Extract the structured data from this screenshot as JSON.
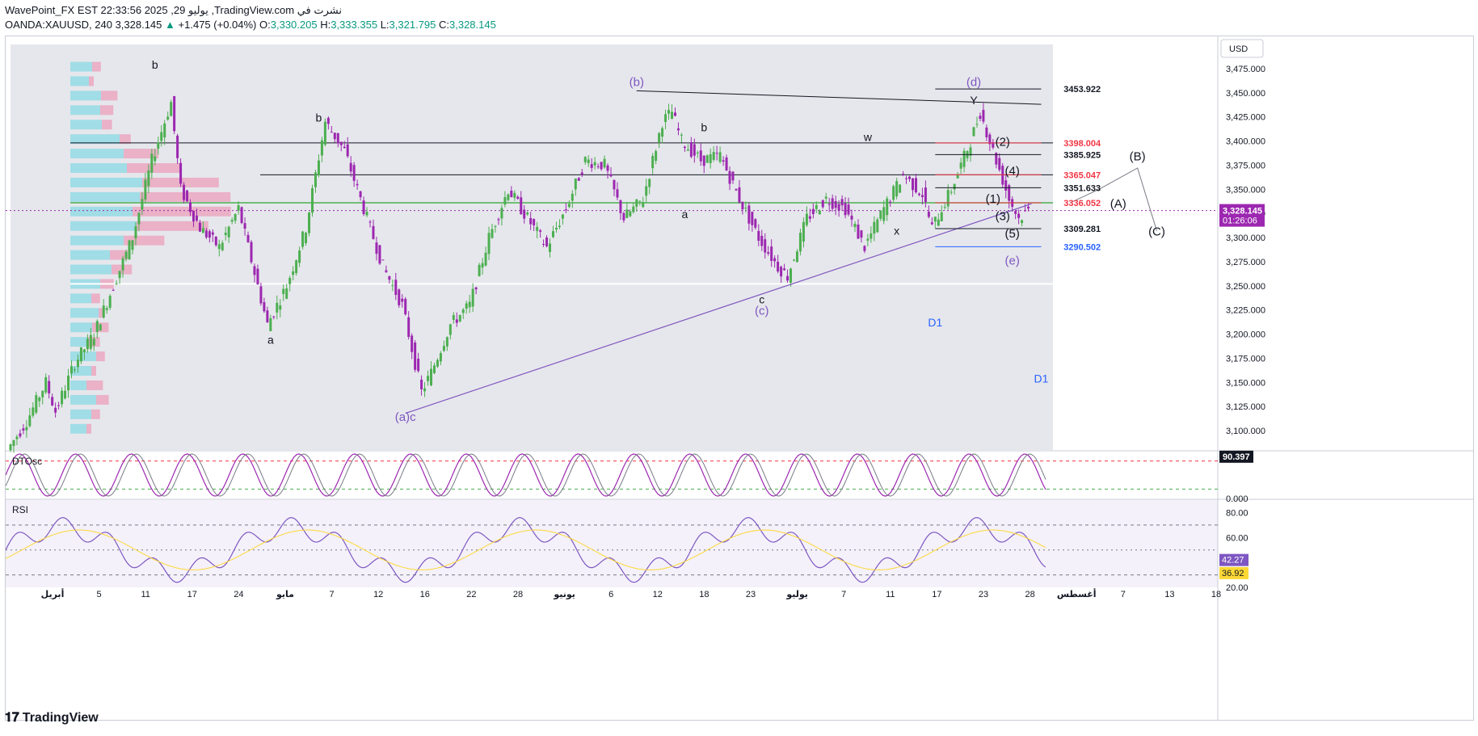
{
  "header": {
    "line1": "WavePoint_FX EST 22:33:56 2025 ,29 يوليو ,TradingView.com نشرت في",
    "symbol": "OANDA:XAUUSD, 240",
    "last": "3,328.145",
    "change": "+1.475 (+0.04%)",
    "o_label": "O:",
    "o": "3,330.205",
    "h_label": "H:",
    "h": "3,333.355",
    "l_label": "L:",
    "l": "3,321.795",
    "c_label": "C:",
    "c": "3,328.145"
  },
  "currency_button": "USD",
  "price_badge": {
    "price": "3,328.145",
    "countdown": "01:26:06"
  },
  "colors": {
    "up": "#089981",
    "candle_up": "#4caf50",
    "candle_down": "#9c27b0",
    "wave": "#7e57c2",
    "level_red": "#f23645",
    "level_blue": "#2962ff",
    "green_line": "#4caf50"
  },
  "chart_data": [
    {
      "type": "candlestick",
      "symbol": "OANDA:XAUUSD",
      "timeframe": "240",
      "ylim": [
        3080,
        3500
      ],
      "y_ticks": [
        "3,475.000",
        "3,450.000",
        "3,425.000",
        "3,400.000",
        "3,375.000",
        "3,350.000",
        "3,325.000",
        "3,300.000",
        "3,275.000",
        "3,250.000",
        "3,225.000",
        "3,200.000",
        "3,175.000",
        "3,150.000",
        "3,125.000",
        "3,100.000"
      ],
      "x_ticks": [
        "أبريل",
        "5",
        "11",
        "17",
        "24",
        "مايو",
        "7",
        "12",
        "16",
        "22",
        "28",
        "يونيو",
        "6",
        "12",
        "18",
        "23",
        "يوليو",
        "7",
        "11",
        "17",
        "23",
        "28",
        "أغسطس",
        "7",
        "13",
        "18"
      ],
      "price_path": [
        [
          0,
          3080
        ],
        [
          2,
          3110
        ],
        [
          4,
          3150
        ],
        [
          5,
          3120
        ],
        [
          7,
          3170
        ],
        [
          9,
          3200
        ],
        [
          11,
          3250
        ],
        [
          13,
          3300
        ],
        [
          15,
          3380
        ],
        [
          17,
          3440
        ],
        [
          18,
          3350
        ],
        [
          20,
          3310
        ],
        [
          22,
          3290
        ],
        [
          24,
          3330
        ],
        [
          26,
          3250
        ],
        [
          27,
          3210
        ],
        [
          29,
          3250
        ],
        [
          31,
          3310
        ],
        [
          33,
          3420
        ],
        [
          35,
          3390
        ],
        [
          37,
          3330
        ],
        [
          39,
          3270
        ],
        [
          41,
          3230
        ],
        [
          43,
          3140
        ],
        [
          44,
          3160
        ],
        [
          46,
          3210
        ],
        [
          48,
          3230
        ],
        [
          50,
          3300
        ],
        [
          52,
          3350
        ],
        [
          54,
          3320
        ],
        [
          56,
          3290
        ],
        [
          58,
          3330
        ],
        [
          60,
          3380
        ],
        [
          62,
          3375
        ],
        [
          64,
          3320
        ],
        [
          66,
          3340
        ],
        [
          68,
          3420
        ],
        [
          69,
          3430
        ],
        [
          70,
          3400
        ],
        [
          72,
          3380
        ],
        [
          74,
          3385
        ],
        [
          76,
          3340
        ],
        [
          78,
          3300
        ],
        [
          80,
          3270
        ],
        [
          81,
          3260
        ],
        [
          83,
          3320
        ],
        [
          85,
          3340
        ],
        [
          87,
          3330
        ],
        [
          89,
          3290
        ],
        [
          91,
          3330
        ],
        [
          93,
          3365
        ],
        [
          95,
          3345
        ],
        [
          96,
          3310
        ],
        [
          98,
          3350
        ],
        [
          100,
          3400
        ],
        [
          101,
          3430
        ],
        [
          102,
          3400
        ],
        [
          103,
          3370
        ],
        [
          104,
          3340
        ],
        [
          105,
          3320
        ],
        [
          106,
          3328
        ]
      ],
      "levels": [
        {
          "value": 3453.922,
          "label": "3453.922",
          "color": "#131722"
        },
        {
          "value": 3398.004,
          "label": "3398.004",
          "color": "#f23645"
        },
        {
          "value": 3385.925,
          "label": "3385.925",
          "color": "#131722"
        },
        {
          "value": 3365.047,
          "label": "3365.047",
          "color": "#f23645"
        },
        {
          "value": 3351.633,
          "label": "3351.633",
          "color": "#131722"
        },
        {
          "value": 3336.052,
          "label": "3336.052",
          "color": "#f23645"
        },
        {
          "value": 3309.281,
          "label": "3309.281",
          "color": "#131722"
        },
        {
          "value": 3290.502,
          "label": "3290.502",
          "color": "#2962ff"
        }
      ],
      "wave_labels": [
        {
          "t": 15,
          "p": 3475,
          "text": "b",
          "color": "#131722"
        },
        {
          "t": 15,
          "p": 3395,
          "text": "",
          "color": "#131722"
        },
        {
          "t": 32,
          "p": 3420,
          "text": "b",
          "color": "#131722"
        },
        {
          "t": 27,
          "p": 3190,
          "text": "a",
          "color": "#131722"
        },
        {
          "t": 41,
          "p": 3110,
          "text": "(a)c",
          "color": "#7e57c2"
        },
        {
          "t": 65,
          "p": 3457,
          "text": "(b)",
          "color": "#7e57c2"
        },
        {
          "t": 72,
          "p": 3410,
          "text": "b",
          "color": "#131722"
        },
        {
          "t": 70,
          "p": 3320,
          "text": "a",
          "color": "#131722"
        },
        {
          "t": 78,
          "p": 3232,
          "text": "c",
          "color": "#131722"
        },
        {
          "t": 78,
          "p": 3220,
          "text": "(c)",
          "color": "#7e57c2"
        },
        {
          "t": 89,
          "p": 3400,
          "text": "w",
          "color": "#131722"
        },
        {
          "t": 92,
          "p": 3303,
          "text": "x",
          "color": "#131722"
        },
        {
          "t": 100,
          "p": 3457,
          "text": "(d)",
          "color": "#7e57c2"
        },
        {
          "t": 100,
          "p": 3438,
          "text": "Y",
          "color": "#131722"
        },
        {
          "t": 103,
          "p": 3395,
          "text": "(2)",
          "color": "#131722"
        },
        {
          "t": 104,
          "p": 3365,
          "text": "(4)",
          "color": "#131722"
        },
        {
          "t": 102,
          "p": 3336,
          "text": "(1)",
          "color": "#131722"
        },
        {
          "t": 103,
          "p": 3318,
          "text": "(3)",
          "color": "#131722"
        },
        {
          "t": 104,
          "p": 3300,
          "text": "(5)",
          "color": "#131722"
        },
        {
          "t": 104,
          "p": 3272,
          "text": "(e)",
          "color": "#7e57c2"
        },
        {
          "t": 117,
          "p": 3380,
          "text": "(B)",
          "color": "#131722"
        },
        {
          "t": 115,
          "p": 3331,
          "text": "(A)",
          "color": "#131722"
        },
        {
          "t": 119,
          "p": 3302,
          "text": "(C)",
          "color": "#131722"
        },
        {
          "t": 96,
          "p": 3208,
          "text": "D1",
          "color": "#2962ff"
        },
        {
          "t": 107,
          "p": 3150,
          "text": "D1",
          "color": "#2962ff"
        }
      ]
    },
    {
      "type": "line",
      "title": "DTOsc",
      "ylim": [
        0,
        100
      ],
      "y_ticks": [
        "0.000"
      ],
      "last_value": "90.397"
    },
    {
      "type": "line",
      "title": "RSI",
      "ylim": [
        20,
        90
      ],
      "y_ticks": [
        "80.00",
        "60.00",
        "20.00"
      ],
      "last_value": "42.27",
      "signal_value": "36.92"
    }
  ],
  "brand": "TradingView"
}
